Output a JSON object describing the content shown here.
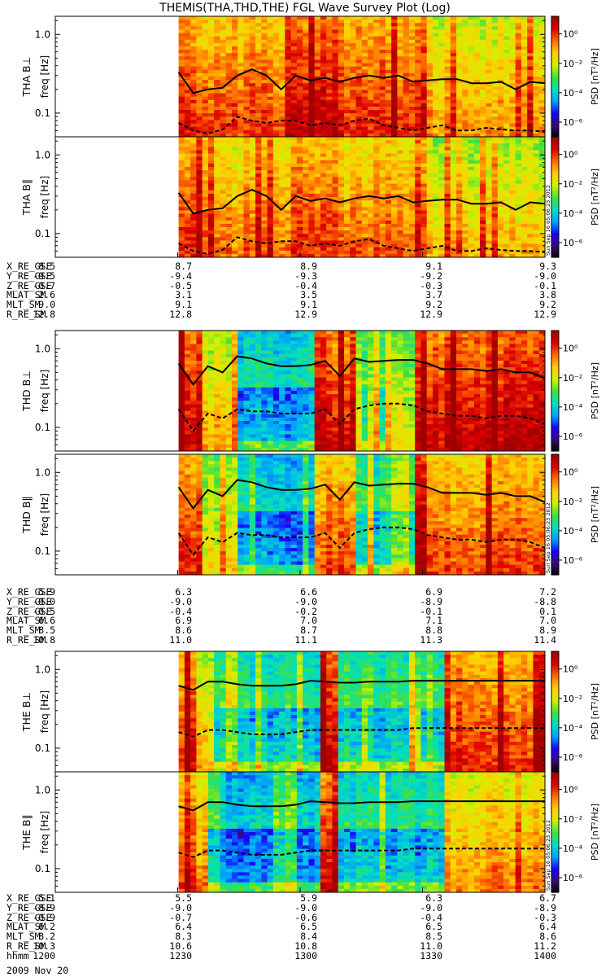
{
  "title": "THEMIS(THA,THD,THE) FGL Wave Survey Plot (Log)",
  "date": "2009 Nov 20",
  "stamp": "Sun Sep 16 05:06:23 2012",
  "colorbar": {
    "label": "PSD [nT²/Hz]",
    "ticks": [
      "10⁰",
      "10⁻²",
      "10⁻⁴",
      "10⁻⁶"
    ],
    "tick_exponents": [
      0,
      -2,
      -4,
      -6
    ],
    "range_log": [
      -7,
      1.2
    ],
    "colors": [
      "#000000",
      "#3b0a70",
      "#1a00ff",
      "#00a0ff",
      "#00e0c0",
      "#40e040",
      "#d0f000",
      "#ffd000",
      "#ff7000",
      "#e00000",
      "#a00000"
    ]
  },
  "ephemeris": {
    "labels": [
      "X_RE_GSE",
      "Y_RE_GSE",
      "Z_RE_GSE",
      "MLAT_SM",
      "MLT_SM",
      "R_RE_SM"
    ],
    "tha": [
      [
        "8.5",
        "8.7",
        "8.9",
        "9.1",
        "9.3"
      ],
      [
        "-9.5",
        "-9.4",
        "-9.3",
        "-9.2",
        "-9.0"
      ],
      [
        "-0.7",
        "-0.5",
        "-0.4",
        "-0.3",
        "-0.1"
      ],
      [
        "2.6",
        "3.1",
        "3.5",
        "3.7",
        "3.8"
      ],
      [
        "9.0",
        "9.1",
        "9.1",
        "9.2",
        "9.2"
      ],
      [
        "12.8",
        "12.8",
        "12.9",
        "12.9",
        "12.9"
      ]
    ],
    "thd": [
      [
        "5.9",
        "6.3",
        "6.6",
        "6.9",
        "7.2"
      ],
      [
        "-9.0",
        "-9.0",
        "-9.0",
        "-8.9",
        "-8.8"
      ],
      [
        "-0.5",
        "-0.4",
        "-0.2",
        "-0.1",
        "0.1"
      ],
      [
        "6.6",
        "6.9",
        "7.0",
        "7.1",
        "7.0"
      ],
      [
        "8.5",
        "8.6",
        "8.7",
        "8.8",
        "8.9"
      ],
      [
        "10.8",
        "11.0",
        "11.1",
        "11.3",
        "11.4"
      ]
    ],
    "the_labels": [
      "X_RE_GSE",
      "Y_RE_GSE",
      "Z_RE_GSE",
      "MLAT_SM",
      "MLT_SM",
      "R_RE_SM",
      "hhmm"
    ],
    "the": [
      [
        "5.1",
        "5.5",
        "5.9",
        "6.3",
        "6.7"
      ],
      [
        "-8.9",
        "-9.0",
        "-9.0",
        "-9.0",
        "-8.9"
      ],
      [
        "-0.9",
        "-0.7",
        "-0.6",
        "-0.4",
        "-0.3"
      ],
      [
        "6.2",
        "6.4",
        "6.5",
        "6.5",
        "6.4"
      ],
      [
        "8.2",
        "8.3",
        "8.4",
        "8.5",
        "8.6"
      ],
      [
        "10.3",
        "10.6",
        "10.8",
        "11.0",
        "11.2"
      ],
      [
        "1200",
        "1230",
        "1300",
        "1330",
        "1400"
      ]
    ]
  },
  "chart_data": [
    {
      "type": "heatmap",
      "panel": "THA B⊥",
      "ylabel": "THA B⊥",
      "yunit": "freq [Hz]",
      "yscale": "log",
      "ylim": [
        0.05,
        1.7
      ],
      "yticks": [
        "1.0",
        "0.1"
      ],
      "xlim": [
        "11:45",
        "14:00"
      ],
      "data_start": "12:19",
      "lines": [
        "solid",
        "dashed"
      ],
      "solid": [
        0.33,
        0.18,
        0.2,
        0.21,
        0.3,
        0.36,
        0.3,
        0.2,
        0.3,
        0.26,
        0.28,
        0.25,
        0.28,
        0.3,
        0.28,
        0.3,
        0.25,
        0.26,
        0.27,
        0.27,
        0.24,
        0.24,
        0.25,
        0.2,
        0.25,
        0.24
      ],
      "dashed": [
        0.075,
        0.06,
        0.055,
        0.062,
        0.09,
        0.08,
        0.075,
        0.08,
        0.08,
        0.07,
        0.075,
        0.07,
        0.08,
        0.085,
        0.07,
        0.065,
        0.06,
        0.065,
        0.07,
        0.06,
        0.06,
        0.065,
        0.062,
        0.06,
        0.06,
        0.058
      ]
    },
    {
      "type": "heatmap",
      "panel": "THA B∥",
      "ylabel": "THA B∥",
      "yunit": "freq [Hz]",
      "yscale": "log",
      "ylim": [
        0.05,
        1.7
      ],
      "yticks": [
        "1.0",
        "0.1"
      ],
      "xlim": [
        "11:45",
        "14:00"
      ],
      "data_start": "12:19",
      "lines": [
        "solid",
        "dashed"
      ],
      "solid": [
        0.33,
        0.18,
        0.2,
        0.21,
        0.3,
        0.36,
        0.3,
        0.2,
        0.3,
        0.26,
        0.28,
        0.25,
        0.28,
        0.3,
        0.28,
        0.3,
        0.25,
        0.26,
        0.27,
        0.27,
        0.24,
        0.24,
        0.25,
        0.2,
        0.25,
        0.24
      ],
      "dashed": [
        0.075,
        0.06,
        0.055,
        0.062,
        0.09,
        0.08,
        0.075,
        0.08,
        0.08,
        0.07,
        0.075,
        0.07,
        0.08,
        0.085,
        0.07,
        0.065,
        0.06,
        0.065,
        0.07,
        0.06,
        0.06,
        0.065,
        0.062,
        0.06,
        0.06,
        0.058
      ]
    },
    {
      "type": "heatmap",
      "panel": "THD B⊥",
      "ylabel": "THD B⊥",
      "yunit": "freq [Hz]",
      "yscale": "log",
      "ylim": [
        0.05,
        1.7
      ],
      "yticks": [
        "1.0",
        "0.1"
      ],
      "xlim": [
        "11:45",
        "14:00"
      ],
      "data_start": "12:19",
      "lines": [
        "solid",
        "dashed"
      ],
      "solid": [
        0.65,
        0.35,
        0.6,
        0.5,
        0.8,
        0.75,
        0.65,
        0.6,
        0.6,
        0.62,
        0.7,
        0.45,
        0.75,
        0.68,
        0.7,
        0.72,
        0.72,
        0.65,
        0.55,
        0.55,
        0.55,
        0.52,
        0.55,
        0.5,
        0.5,
        0.42
      ],
      "dashed": [
        0.17,
        0.09,
        0.15,
        0.13,
        0.17,
        0.16,
        0.16,
        0.15,
        0.15,
        0.15,
        0.17,
        0.11,
        0.17,
        0.19,
        0.2,
        0.2,
        0.19,
        0.16,
        0.15,
        0.14,
        0.14,
        0.13,
        0.14,
        0.14,
        0.13,
        0.11
      ]
    },
    {
      "type": "heatmap",
      "panel": "THD B∥",
      "ylabel": "THD B∥",
      "yunit": "freq [Hz]",
      "yscale": "log",
      "ylim": [
        0.05,
        1.7
      ],
      "yticks": [
        "1.0",
        "0.1"
      ],
      "xlim": [
        "11:45",
        "14:00"
      ],
      "data_start": "12:19",
      "lines": [
        "solid",
        "dashed"
      ],
      "solid": [
        0.65,
        0.35,
        0.6,
        0.5,
        0.8,
        0.75,
        0.65,
        0.6,
        0.6,
        0.62,
        0.7,
        0.45,
        0.75,
        0.68,
        0.7,
        0.72,
        0.72,
        0.65,
        0.55,
        0.55,
        0.55,
        0.52,
        0.55,
        0.5,
        0.5,
        0.42
      ],
      "dashed": [
        0.17,
        0.09,
        0.15,
        0.13,
        0.17,
        0.16,
        0.16,
        0.15,
        0.15,
        0.15,
        0.17,
        0.11,
        0.17,
        0.19,
        0.2,
        0.2,
        0.19,
        0.16,
        0.15,
        0.14,
        0.14,
        0.13,
        0.14,
        0.14,
        0.13,
        0.11
      ]
    },
    {
      "type": "heatmap",
      "panel": "THE B⊥",
      "ylabel": "THE B⊥",
      "yunit": "freq [Hz]",
      "yscale": "log",
      "ylim": [
        0.05,
        1.7
      ],
      "yticks": [
        "1.0",
        "0.1"
      ],
      "xlim": [
        "11:45",
        "14:00"
      ],
      "data_start": "12:19",
      "lines": [
        "solid",
        "dashed"
      ],
      "solid": [
        0.62,
        0.55,
        0.7,
        0.7,
        0.65,
        0.62,
        0.62,
        0.62,
        0.65,
        0.72,
        0.7,
        0.68,
        0.68,
        0.7,
        0.7,
        0.7,
        0.72,
        0.72,
        0.72,
        0.72,
        0.72,
        0.72,
        0.72,
        0.72,
        0.72,
        0.72
      ],
      "dashed": [
        0.16,
        0.14,
        0.17,
        0.17,
        0.16,
        0.15,
        0.15,
        0.15,
        0.16,
        0.17,
        0.17,
        0.17,
        0.17,
        0.17,
        0.17,
        0.17,
        0.18,
        0.18,
        0.18,
        0.18,
        0.18,
        0.18,
        0.18,
        0.18,
        0.18,
        0.18
      ]
    },
    {
      "type": "heatmap",
      "panel": "THE B∥",
      "ylabel": "THE B∥",
      "yunit": "freq [Hz]",
      "yscale": "log",
      "ylim": [
        0.05,
        1.7
      ],
      "yticks": [
        "1.0",
        "0.1"
      ],
      "xlim": [
        "11:45",
        "14:00"
      ],
      "data_start": "12:19",
      "lines": [
        "solid",
        "dashed"
      ],
      "solid": [
        0.62,
        0.55,
        0.7,
        0.7,
        0.65,
        0.62,
        0.62,
        0.62,
        0.65,
        0.72,
        0.7,
        0.68,
        0.68,
        0.7,
        0.7,
        0.7,
        0.72,
        0.72,
        0.72,
        0.72,
        0.72,
        0.72,
        0.72,
        0.72,
        0.72,
        0.72
      ],
      "dashed": [
        0.16,
        0.14,
        0.17,
        0.17,
        0.16,
        0.15,
        0.15,
        0.15,
        0.16,
        0.17,
        0.17,
        0.17,
        0.17,
        0.17,
        0.17,
        0.17,
        0.18,
        0.18,
        0.18,
        0.18,
        0.18,
        0.18,
        0.18,
        0.18,
        0.18,
        0.18
      ]
    }
  ]
}
